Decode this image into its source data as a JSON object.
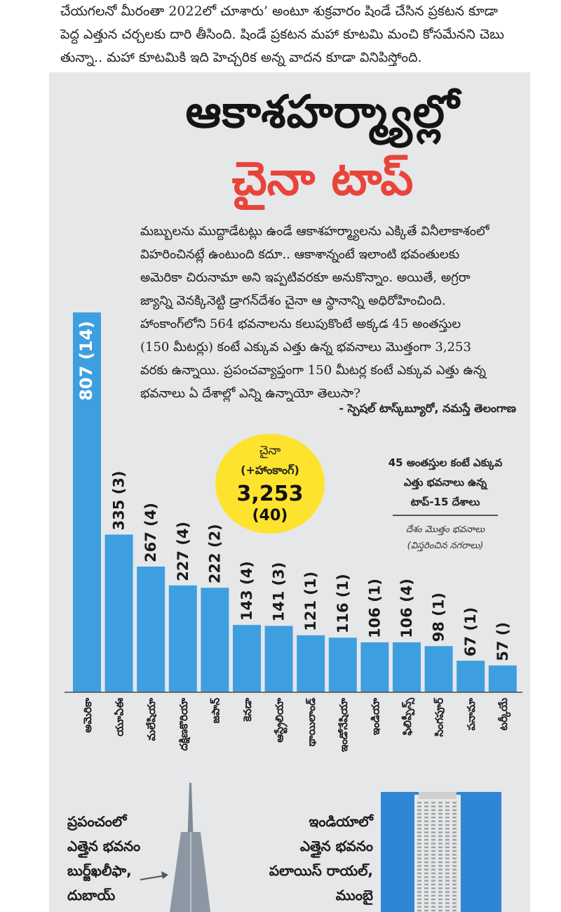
{
  "article_top": {
    "lines": [
      "చేయగలనో మీరంతా 2022లో చూశారు’ అంటూ శుక్రవారం షిండే చేసిన ప్రకటన కూడా",
      "పెద్ద ఎత్తున చర్చలకు దారి తీసింది. షిండే ప్రకటన మహా కూటమి మంచి కోసమేనని చెబు",
      "తున్నా.. మహా కూటమికి ఇది హెచ్చరిక అన్న వాదన కూడా వినిపిస్తోంది."
    ]
  },
  "headline": "ఆకాశహర్మ్యాల్లో",
  "subhead": "చైనా టాప్",
  "intro": {
    "lines": [
      "మబ్బులను ముద్దాడేటట్లు ఉండే ఆకాశహర్మ్యాలను ఎక్కితే వినీలాకాశంలో",
      "విహరించినట్లే ఉంటుంది కదూ.. ఆకాశాన్నంటే ఇలాంటి భవంతులకు",
      "అమెరికా చిరునామా అని ఇప్పటివరకూ అనుకొన్నాం. అయితే, అగ్రరా",
      "జ్యాన్ని వెనక్కినెట్టి డ్రాగన్‌దేశం చైనా ఆ స్థానాన్ని అధిరోహించింది.",
      "హాంకాంగ్‌లోని 564 భవనాలను కలుపుకొంటే అక్కడ 45 అంతస్తుల",
      "(150 మీటర్లు) కంటే ఎక్కువ ఎత్తు ఉన్న భవనాలు మొత్తంగా 3,253",
      "వరకు ఉన్నాయి. ప్రపంచవ్యాప్తంగా 150 మీటర్ల కంటే ఎక్కువ ఎత్తు ఉన్న",
      "భవనాలు ఏ దేశాల్లో ఎన్ని ఉన్నాయో తెలుసా?"
    ],
    "byline": "- స్పెషల్ టాస్క్‌బ్యూరో, నమస్తే తెలంగాణ"
  },
  "bubble": {
    "line1": "చైనా",
    "line2": "(+హాంకాంగ్)",
    "value": "3,253",
    "cities": "(40)"
  },
  "legend": {
    "title_line1": "45 అంతస్తుల కంటే ఎక్కువ",
    "title_line2": "ఎత్తు భవనాలు ఉన్న",
    "title_line3": "టాప్-15 దేశాలు",
    "key_line1": "దేశం మొత్తం భవనాలు",
    "key_line2": "(విస్తరించిన నగరాలు)"
  },
  "chart_data": {
    "type": "bar",
    "categories": [
      "అమెరికా",
      "యూఏఈ",
      "మలేషియా",
      "దక్షిణకొరియా",
      "జపాన్",
      "కెనడా",
      "ఆస్ట్రేలియా",
      "థాయిలాండ్",
      "ఇండోనేషియా",
      "ఇండియా",
      "ఫిలిప్పీన్స్",
      "సింగపూర్",
      "పనామా",
      "టర్కీయే"
    ],
    "values": [
      807,
      335,
      267,
      227,
      222,
      143,
      141,
      121,
      116,
      106,
      106,
      98,
      67,
      57
    ],
    "labels": [
      "807 (14)",
      "335 (3)",
      "267 (4)",
      "227 (4)",
      "222 (2)",
      "143 (4)",
      "141 (3)",
      "121 (1)",
      "116 (1)",
      "106 (1)",
      "106 (4)",
      "98 (1)",
      "67 (1)",
      "57 ()"
    ],
    "color": "#3e9fe0",
    "ylim": [
      0,
      807
    ]
  },
  "bottom": {
    "world_lines": [
      "ప్రపంచంలో",
      "ఎత్తైన భవనం",
      "బుర్జ్‌ఖలీఫా,",
      "దుబాయ్"
    ],
    "india_lines": [
      "ఇండియాలో",
      "ఎత్తైన భవనం",
      "పలాయిస్ రాయల్,",
      "ముంబై"
    ]
  }
}
